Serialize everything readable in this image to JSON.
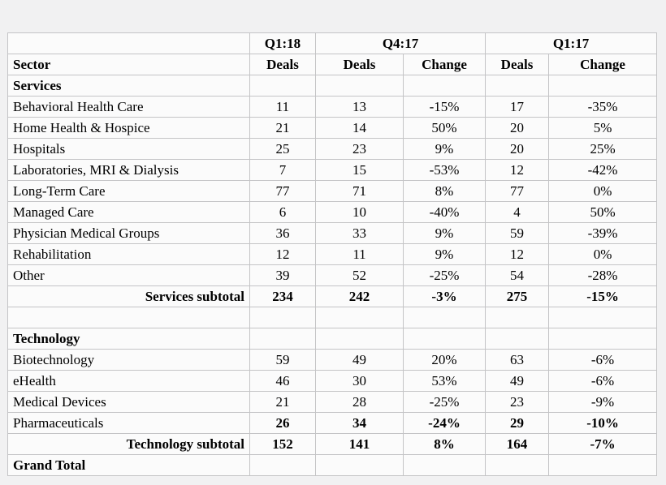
{
  "colors": {
    "page_background": "#f1f1f2",
    "cell_background": "#fbfbfb",
    "grid_border": "#c4c4c6",
    "text": "#000000"
  },
  "table": {
    "quarters": [
      "Q1:18",
      "Q4:17",
      "Q1:17"
    ],
    "column_headers": [
      "Sector",
      "Deals",
      "Deals",
      "Change",
      "Deals",
      "Change"
    ],
    "rows": [
      {
        "style": "section",
        "label": "Services",
        "values": [
          "",
          "",
          "",
          "",
          ""
        ]
      },
      {
        "style": "data",
        "label": "Behavioral Health Care",
        "values": [
          "11",
          "13",
          "-15%",
          "17",
          "-35%"
        ]
      },
      {
        "style": "data",
        "label": "Home Health & Hospice",
        "values": [
          "21",
          "14",
          "50%",
          "20",
          "5%"
        ]
      },
      {
        "style": "data",
        "label": "Hospitals",
        "values": [
          "25",
          "23",
          "9%",
          "20",
          "25%"
        ]
      },
      {
        "style": "data",
        "label": "Laboratories, MRI & Dialysis",
        "values": [
          "7",
          "15",
          "-53%",
          "12",
          "-42%"
        ]
      },
      {
        "style": "data",
        "label": "Long-Term Care",
        "values": [
          "77",
          "71",
          "8%",
          "77",
          "0%"
        ]
      },
      {
        "style": "data",
        "label": "Managed Care",
        "values": [
          "6",
          "10",
          "-40%",
          "4",
          "50%"
        ]
      },
      {
        "style": "data",
        "label": "Physician Medical Groups",
        "values": [
          "36",
          "33",
          "9%",
          "59",
          "-39%"
        ]
      },
      {
        "style": "data",
        "label": "Rehabilitation",
        "values": [
          "12",
          "11",
          "9%",
          "12",
          "0%"
        ]
      },
      {
        "style": "data",
        "label": "Other",
        "values": [
          "39",
          "52",
          "-25%",
          "54",
          "-28%"
        ]
      },
      {
        "style": "subtotal",
        "label": "Services subtotal",
        "values": [
          "234",
          "242",
          "-3%",
          "275",
          "-15%"
        ]
      },
      {
        "style": "spacer",
        "label": "",
        "values": [
          "",
          "",
          "",
          "",
          ""
        ]
      },
      {
        "style": "section",
        "label": "Technology",
        "values": [
          "",
          "",
          "",
          "",
          ""
        ]
      },
      {
        "style": "data",
        "label": "Biotechnology",
        "values": [
          "59",
          "49",
          "20%",
          "63",
          "-6%"
        ]
      },
      {
        "style": "data",
        "label": "eHealth",
        "values": [
          "46",
          "30",
          "53%",
          "49",
          "-6%"
        ]
      },
      {
        "style": "data",
        "label": "Medical Devices",
        "values": [
          "21",
          "28",
          "-25%",
          "23",
          "-9%"
        ]
      },
      {
        "style": "data-bold-values",
        "label": "Pharmaceuticals",
        "values": [
          "26",
          "34",
          "-24%",
          "29",
          "-10%"
        ]
      },
      {
        "style": "subtotal",
        "label": "Technology subtotal",
        "values": [
          "152",
          "141",
          "8%",
          "164",
          "-7%"
        ]
      },
      {
        "style": "grand-total",
        "label": "Grand Total",
        "values": [
          "",
          "",
          "",
          "",
          ""
        ]
      }
    ]
  }
}
